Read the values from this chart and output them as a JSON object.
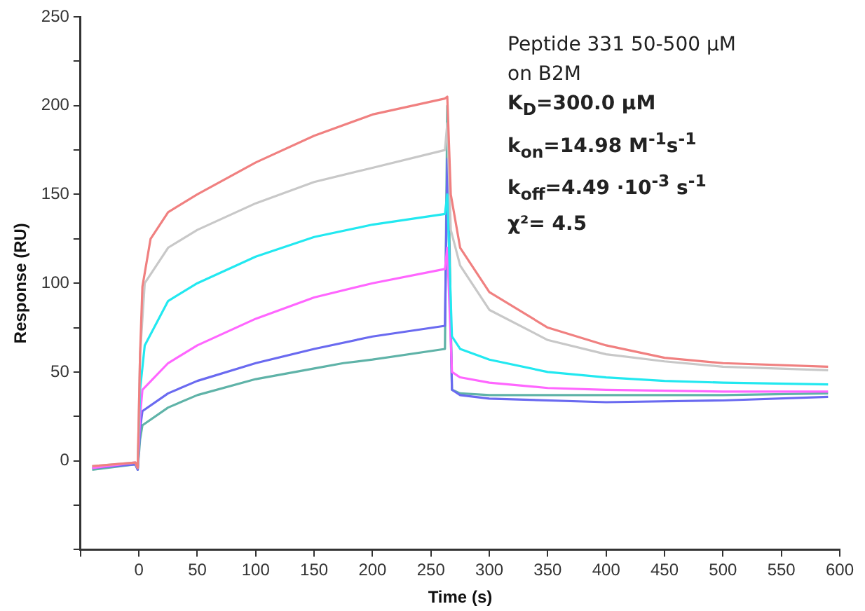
{
  "chart_data": {
    "type": "line",
    "xlabel": "Time (s)",
    "ylabel": "Response (RU)",
    "annotations": [
      "Peptide 331 50-500 µM",
      "on B2M",
      "K$_{D}$=300.0 µM",
      "k$_{on}$=14.98 M$^{-1}$s$^{-1}$",
      "k$_{off}$=4.49 ·10$^{-3}$ s$^{-1}$",
      "χ²= 4.5"
    ],
    "xlim": [
      -50,
      600
    ],
    "xticks": [
      {
        "value": -50,
        "label": null
      },
      0,
      50,
      100,
      150,
      200,
      250,
      300,
      350,
      400,
      450,
      500,
      550,
      600
    ],
    "ylim": [
      -50,
      250
    ],
    "yticks": [
      {
        "value": -50,
        "label": null
      },
      {
        "value": -25,
        "label": null
      },
      0,
      {
        "value": 25,
        "label": null
      },
      50,
      {
        "value": 75,
        "label": null
      },
      100,
      {
        "value": 125,
        "label": null
      },
      150,
      {
        "value": 175,
        "label": null
      },
      200,
      {
        "value": 225,
        "label": null
      },
      250
    ],
    "grid": false,
    "legend": false,
    "marker": "none",
    "line_style": "solid",
    "series": [
      {
        "color": "#f08080",
        "x": [
          -40,
          -3,
          -1,
          1,
          3,
          10,
          25,
          50,
          100,
          150,
          200,
          262,
          264,
          267,
          275,
          300,
          350,
          400,
          450,
          500,
          590
        ],
        "values": [
          -3,
          -1,
          -4,
          60,
          98,
          125,
          140,
          150,
          168,
          183,
          195,
          204,
          205,
          150,
          120,
          95,
          75,
          65,
          58,
          55,
          53
        ]
      },
      {
        "color": "#c8c8c8",
        "x": [
          -40,
          -3,
          -1,
          1,
          5,
          25,
          50,
          100,
          150,
          200,
          262,
          264,
          267,
          275,
          300,
          350,
          400,
          450,
          500,
          590
        ],
        "values": [
          -3,
          -1,
          -4,
          60,
          100,
          120,
          130,
          145,
          157,
          165,
          175,
          190,
          130,
          110,
          85,
          68,
          60,
          56,
          53,
          51
        ]
      },
      {
        "color": "#22e8f0",
        "x": [
          -1,
          1,
          5,
          25,
          50,
          100,
          150,
          200,
          262,
          264,
          268,
          275,
          300,
          350,
          400,
          450,
          500,
          590
        ],
        "values": [
          -4,
          40,
          65,
          90,
          100,
          115,
          126,
          133,
          139,
          150,
          70,
          63,
          57,
          50,
          47,
          45,
          44,
          43
        ]
      },
      {
        "color": "#ff66ff",
        "x": [
          -40,
          -3,
          -1,
          1,
          3,
          25,
          50,
          100,
          150,
          200,
          262,
          264,
          268,
          275,
          300,
          350,
          400,
          500,
          590
        ],
        "values": [
          -4,
          -1,
          -4,
          25,
          40,
          55,
          65,
          80,
          92,
          100,
          108,
          120,
          50,
          47,
          44,
          41,
          40,
          39,
          39
        ]
      },
      {
        "color": "#6a6af0",
        "x": [
          -40,
          -3,
          -1,
          1,
          3,
          25,
          50,
          100,
          150,
          200,
          262,
          264,
          268,
          275,
          300,
          400,
          500,
          590
        ],
        "values": [
          -4,
          -2,
          -5,
          18,
          28,
          38,
          45,
          55,
          63,
          70,
          76,
          170,
          40,
          37,
          35,
          33,
          34,
          36
        ]
      },
      {
        "color": "#5fb3a8",
        "x": [
          -40,
          -3,
          -1,
          1,
          3,
          25,
          50,
          100,
          150,
          175,
          200,
          262,
          264,
          268,
          275,
          300,
          400,
          500,
          590
        ],
        "values": [
          -5,
          -2,
          -5,
          12,
          20,
          30,
          37,
          46,
          52,
          55,
          57,
          63,
          200,
          40,
          38,
          37,
          37,
          37,
          38
        ]
      }
    ]
  }
}
